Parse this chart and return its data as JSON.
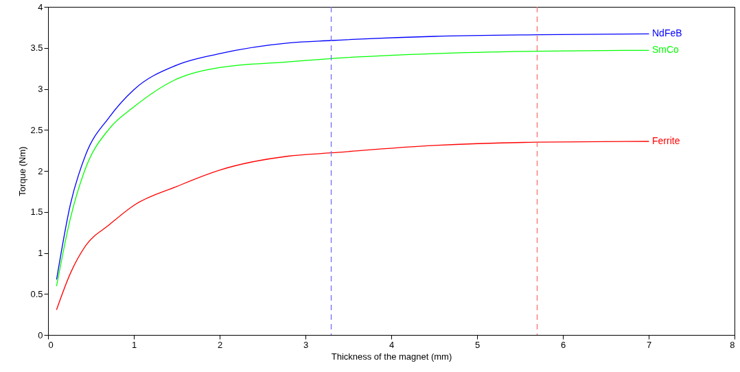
{
  "chart_data": {
    "type": "line",
    "xlabel": "Thickness of the magnet (mm)",
    "ylabel": "Torque (Nm)",
    "x": [
      0.1,
      0.26,
      0.44,
      0.71,
      1,
      1.5,
      2,
      2.8,
      3.3,
      4.5,
      5.7,
      7
    ],
    "series": [
      {
        "name": "NdFeB",
        "color": "#0000ff",
        "values": [
          0.68,
          1.59,
          2.2,
          2.65,
          2.99,
          3.29,
          3.43,
          3.56,
          3.59,
          3.64,
          3.66,
          3.67
        ]
      },
      {
        "name": "SmCo",
        "color": "#00ff00",
        "values": [
          0.6,
          1.42,
          2.04,
          2.51,
          2.78,
          3.12,
          3.26,
          3.33,
          3.37,
          3.43,
          3.46,
          3.47
        ]
      },
      {
        "name": "Ferrite",
        "color": "#ff0000",
        "values": [
          0.31,
          0.75,
          1.09,
          1.34,
          1.58,
          1.81,
          2.01,
          2.18,
          2.22,
          2.31,
          2.35,
          2.36
        ]
      }
    ],
    "xlim": [
      0,
      8
    ],
    "xticks": [
      0,
      1,
      2,
      3,
      4,
      5,
      6,
      7,
      8
    ],
    "ylim": [
      0,
      4
    ],
    "yticks": [
      0,
      0.5,
      1,
      1.5,
      2,
      2.5,
      3,
      3.5,
      4
    ],
    "ref_lines": [
      {
        "axis": "x",
        "value": 3.3,
        "color": "#6f6fff",
        "line_style": "dashed"
      },
      {
        "axis": "x",
        "value": 5.7,
        "color": "#ff6f6f",
        "line_style": "dashed"
      }
    ],
    "grid": false
  }
}
